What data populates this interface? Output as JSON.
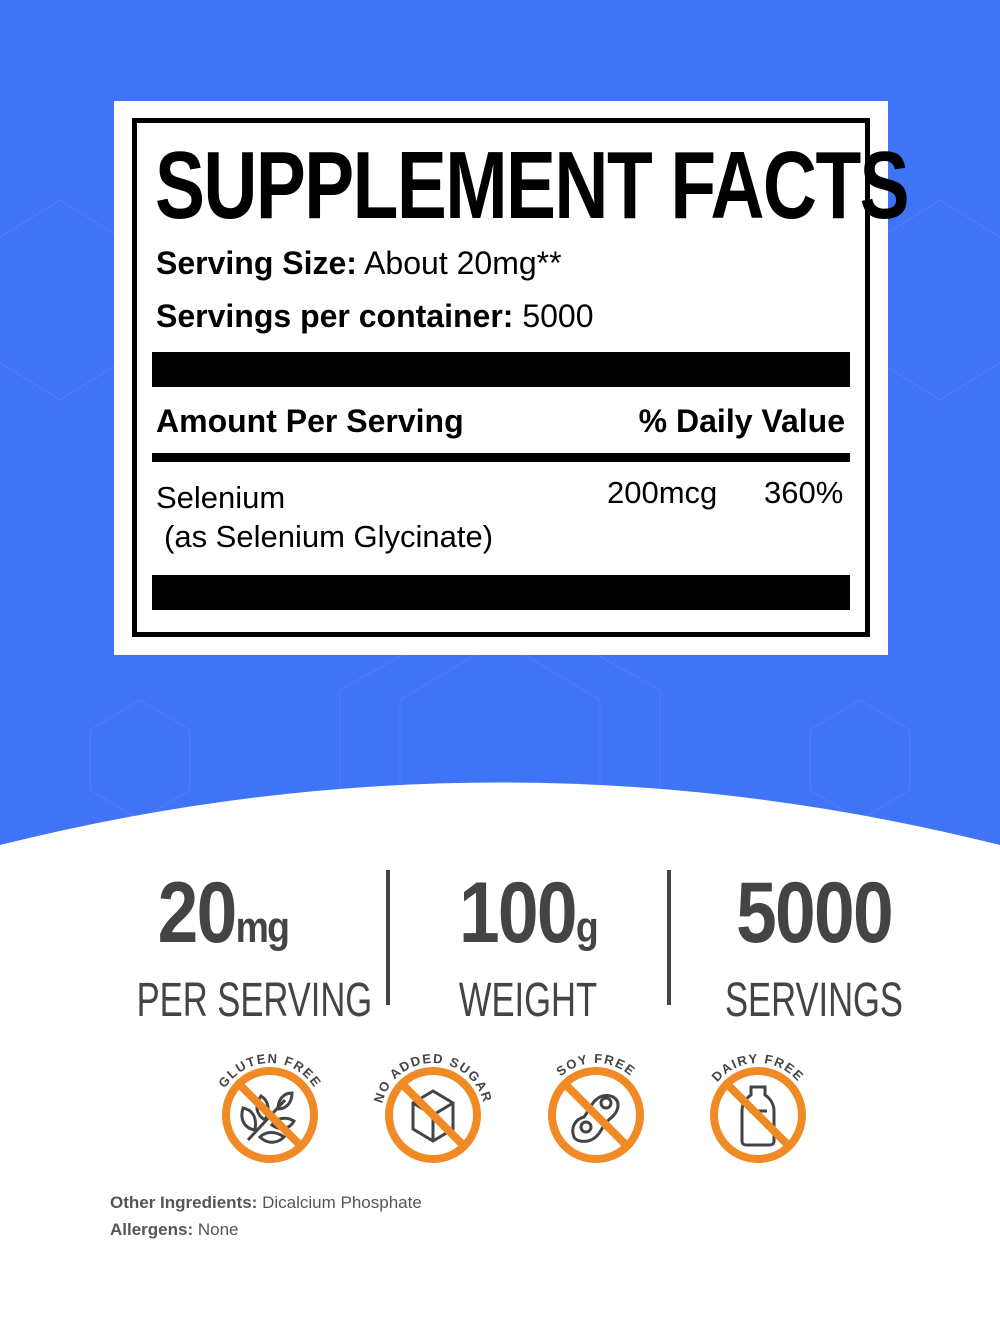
{
  "colors": {
    "background": "#3f74f7",
    "accent_orange": "#f08a24",
    "stat_gray": "#444444"
  },
  "facts": {
    "title": "SUPPLEMENT FACTS",
    "serving_size_label": "Serving Size:",
    "serving_size_value": "About 20mg**",
    "servings_label": "Servings per container:",
    "servings_value": "5000",
    "amount_header": "Amount Per Serving",
    "dv_header": "% Daily Value",
    "ingredient": {
      "name": "Selenium",
      "form": "(as Selenium Glycinate)",
      "amount": "200mcg",
      "dv": "360%"
    }
  },
  "stats": [
    {
      "value": "20",
      "unit": "mg",
      "label": "PER SERVING"
    },
    {
      "value": "100",
      "unit": "g",
      "label": "WEIGHT"
    },
    {
      "value": "5000",
      "unit": "",
      "label": "SERVINGS"
    }
  ],
  "badges": [
    {
      "label": "GLUTEN FREE",
      "icon": "wheat-icon"
    },
    {
      "label": "NO ADDED SUGAR",
      "icon": "sugar-cube-icon"
    },
    {
      "label": "SOY FREE",
      "icon": "soybean-icon"
    },
    {
      "label": "DAIRY FREE",
      "icon": "milk-bottle-icon"
    }
  ],
  "other_ingredients_label": "Other Ingredients:",
  "other_ingredients_value": "Dicalcium Phosphate",
  "allergens_label": "Allergens:",
  "allergens_value": "None"
}
